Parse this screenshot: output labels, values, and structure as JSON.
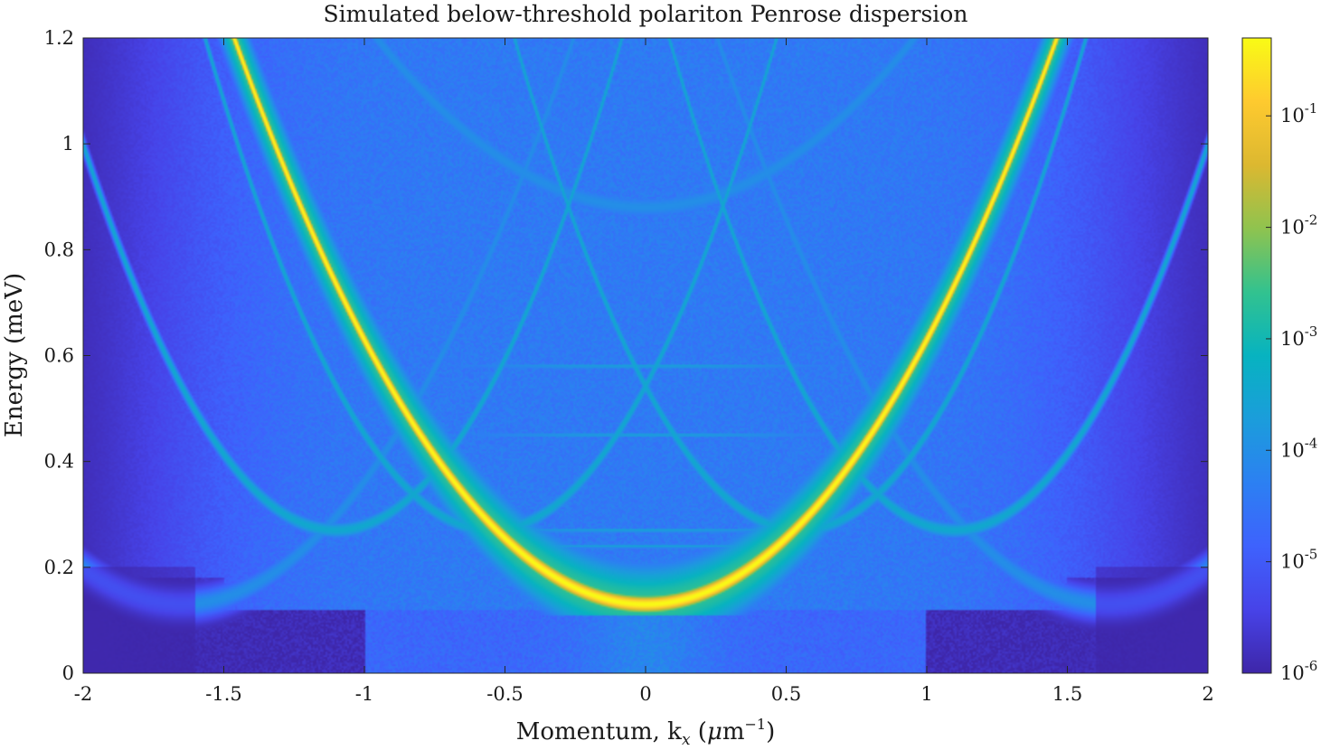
{
  "chart_data": {
    "type": "heatmap",
    "title": "Simulated below-threshold polariton Penrose dispersion",
    "xlabel": "Momentum, k",
    "xlabel_sub": "x",
    "xlabel_unit_open": " (",
    "xlabel_unit_mu": "μ",
    "xlabel_unit_m": "m",
    "xlabel_unit_exp": "−1",
    "xlabel_unit_close": ")",
    "ylabel": "Energy (meV)",
    "xlim": [
      -2,
      2
    ],
    "ylim": [
      0,
      1.2
    ],
    "x_ticks": [
      "-2",
      "-1.5",
      "-1",
      "-0.5",
      "0",
      "0.5",
      "1",
      "1.5",
      "2"
    ],
    "x_tick_values": [
      -2,
      -1.5,
      -1,
      -0.5,
      0,
      0.5,
      1,
      1.5,
      2
    ],
    "y_ticks": [
      "0",
      "0.2",
      "0.4",
      "0.6",
      "0.8",
      "1",
      "1.2"
    ],
    "y_tick_values": [
      0,
      0.2,
      0.4,
      0.6,
      0.8,
      1.0,
      1.2
    ],
    "colorbar": {
      "scale": "log",
      "range": [
        1e-06,
        0.5
      ],
      "tick_values": [
        1e-06,
        1e-05,
        0.0001,
        0.001,
        0.01,
        0.1
      ],
      "tick_labels": [
        {
          "base": "10",
          "exp": "-6"
        },
        {
          "base": "10",
          "exp": "-5"
        },
        {
          "base": "10",
          "exp": "-4"
        },
        {
          "base": "10",
          "exp": "-3"
        },
        {
          "base": "10",
          "exp": "-2"
        },
        {
          "base": "10",
          "exp": "-1"
        }
      ],
      "colormap": "parula"
    },
    "dispersion": {
      "main_branch_min_energy": 0.13,
      "main_branch_curvature": 0.5,
      "folded_branch_centers": [
        -1.1,
        -0.55,
        0.55,
        1.1
      ],
      "folded_branch_min_energy": 0.27,
      "flat_band_energies": [
        0.24,
        0.27,
        0.45,
        0.58
      ]
    }
  },
  "colors": {
    "background": "#ffffff",
    "axis": "#262626",
    "parula_low": "#3e26a8",
    "parula_high": "#f9fb15"
  }
}
